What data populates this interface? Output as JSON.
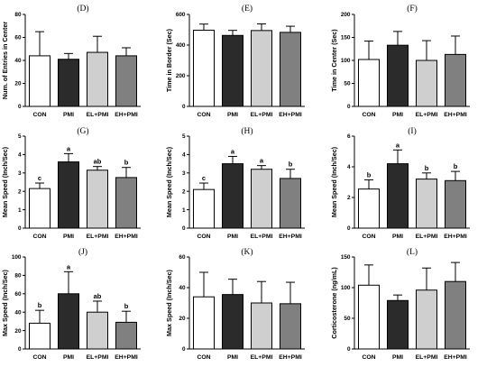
{
  "chart_data": [
    {
      "panel": "(D)",
      "type": "bar",
      "ylabel": "Num. of Entries in Center",
      "ylim": [
        0,
        80
      ],
      "yticks": [
        0,
        20,
        40,
        60,
        80
      ],
      "categories": [
        "CON",
        "PMI",
        "EL+PMI",
        "EH+PMI"
      ],
      "values": [
        44,
        41,
        47,
        44
      ],
      "errors": [
        21,
        5,
        14,
        7
      ],
      "letters": [
        "",
        "",
        "",
        ""
      ]
    },
    {
      "panel": "(E)",
      "type": "bar",
      "ylabel": "Time in Border (Sec)",
      "ylim": [
        0,
        600
      ],
      "yticks": [
        0,
        200,
        400,
        600
      ],
      "categories": [
        "CON",
        "PMI",
        "EL+PMI",
        "EH+PMI"
      ],
      "values": [
        497,
        463,
        495,
        483
      ],
      "errors": [
        40,
        33,
        43,
        40
      ],
      "letters": [
        "",
        "",
        "",
        ""
      ]
    },
    {
      "panel": "(F)",
      "type": "bar",
      "ylabel": "Time in Center (Sec)",
      "ylim": [
        0,
        200
      ],
      "yticks": [
        0,
        50,
        100,
        150,
        200
      ],
      "categories": [
        "CON",
        "PMI",
        "EL+PMI",
        "EH+PMI"
      ],
      "values": [
        102,
        133,
        100,
        113
      ],
      "errors": [
        40,
        30,
        43,
        40
      ],
      "letters": [
        "",
        "",
        "",
        ""
      ]
    },
    {
      "panel": "(G)",
      "type": "bar",
      "ylabel": "Mean Speed (Inch/Sec)",
      "ylim": [
        0,
        5
      ],
      "yticks": [
        0,
        1,
        2,
        3,
        4,
        5
      ],
      "categories": [
        "CON",
        "PMI",
        "EL+PMI",
        "EH+PMI"
      ],
      "values": [
        2.15,
        3.6,
        3.15,
        2.75
      ],
      "errors": [
        0.3,
        0.45,
        0.2,
        0.55
      ],
      "letters": [
        "c",
        "a",
        "ab",
        "b"
      ]
    },
    {
      "panel": "(H)",
      "type": "bar",
      "ylabel": "Mean Speed (Inch/Sec)",
      "ylim": [
        0,
        5
      ],
      "yticks": [
        0,
        1,
        2,
        3,
        4,
        5
      ],
      "categories": [
        "CON",
        "PMI",
        "EL+PMI",
        "EH+PMI"
      ],
      "values": [
        2.1,
        3.5,
        3.2,
        2.7
      ],
      "errors": [
        0.35,
        0.4,
        0.2,
        0.5
      ],
      "letters": [
        "c",
        "a",
        "a",
        "b"
      ]
    },
    {
      "panel": "(I)",
      "type": "bar",
      "ylabel": "Mean Speed (Inch/Sec)",
      "ylim": [
        0,
        6
      ],
      "yticks": [
        0,
        2,
        4,
        6
      ],
      "categories": [
        "CON",
        "PMI",
        "EL+PMI",
        "EH+PMI"
      ],
      "values": [
        2.55,
        4.2,
        3.2,
        3.1
      ],
      "errors": [
        0.6,
        0.9,
        0.4,
        0.6
      ],
      "letters": [
        "b",
        "a",
        "b",
        "b"
      ]
    },
    {
      "panel": "(J)",
      "type": "bar",
      "ylabel": "Max Speed (Inch/Sec)",
      "ylim": [
        0,
        100
      ],
      "yticks": [
        0,
        20,
        40,
        60,
        80,
        100
      ],
      "categories": [
        "CON",
        "PMI",
        "EL+PMI",
        "EH+PMI"
      ],
      "values": [
        28,
        60,
        40,
        29
      ],
      "errors": [
        14,
        24,
        12,
        12
      ],
      "letters": [
        "b",
        "a",
        "ab",
        "b"
      ]
    },
    {
      "panel": "(K)",
      "type": "bar",
      "ylabel": "Max Speed (Inch/Sec)",
      "ylim": [
        0,
        60
      ],
      "yticks": [
        0,
        20,
        40,
        60
      ],
      "categories": [
        "CON",
        "PMI",
        "EL+PMI",
        "EH+PMI"
      ],
      "values": [
        34,
        35.5,
        30,
        29.5
      ],
      "errors": [
        16,
        10,
        14,
        14
      ],
      "letters": [
        "",
        "",
        "",
        ""
      ]
    },
    {
      "panel": "(L)",
      "type": "bar",
      "ylabel": "Corticosterone (ng/mL)",
      "ylim": [
        0,
        150
      ],
      "yticks": [
        0,
        50,
        100,
        150
      ],
      "categories": [
        "CON",
        "PMI",
        "EL+PMI",
        "EH+PMI"
      ],
      "values": [
        104,
        79,
        96,
        110
      ],
      "errors": [
        33,
        9,
        36,
        31
      ],
      "letters": [
        "",
        "",
        "",
        ""
      ]
    }
  ],
  "bar_colors": [
    "#ffffff",
    "#2b2b2b",
    "#cfcfcf",
    "#808080"
  ]
}
